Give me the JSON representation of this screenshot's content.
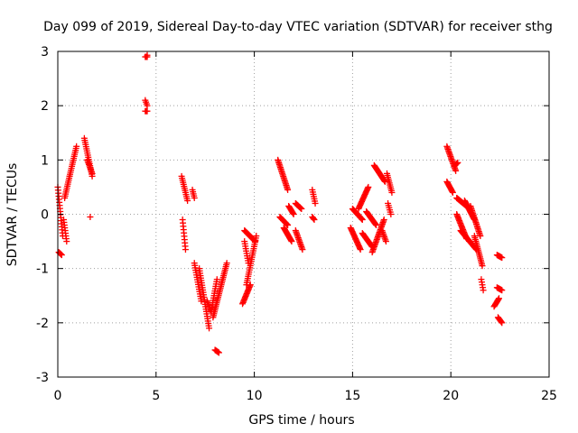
{
  "chart_data": {
    "type": "scatter",
    "title": "Day 099 of 2019, Sidereal Day-to-day VTEC variation (SDTVAR) for receiver sthg",
    "xlabel": "GPS time / hours",
    "ylabel": "SDTVAR / TECUs",
    "xlim": [
      0,
      25
    ],
    "ylim": [
      -3,
      3
    ],
    "xticks": [
      "0",
      "5",
      "10",
      "15",
      "20",
      "25"
    ],
    "yticks": [
      "-3",
      "-2",
      "-1",
      "0",
      "1",
      "2",
      "3"
    ],
    "grid": true,
    "marker": "+",
    "color": "#ff0000",
    "segments": [
      {
        "x0": 0.0,
        "x1": 0.25,
        "y0": 0.5,
        "y1": -0.4
      },
      {
        "x0": 0.05,
        "x1": 0.2,
        "y0": -0.7,
        "y1": -0.75
      },
      {
        "x0": 0.3,
        "x1": 0.45,
        "y0": -0.1,
        "y1": -0.5
      },
      {
        "x0": 0.35,
        "x1": 0.6,
        "y0": 0.3,
        "y1": 0.7
      },
      {
        "x0": 0.6,
        "x1": 0.95,
        "y0": 0.7,
        "y1": 1.25
      },
      {
        "x0": 1.35,
        "x1": 1.75,
        "y0": 1.4,
        "y1": 0.7
      },
      {
        "x0": 1.5,
        "x1": 1.75,
        "y0": 1.0,
        "y1": 0.75
      },
      {
        "x0": 4.45,
        "x1": 4.55,
        "y0": 2.9,
        "y1": 2.9
      },
      {
        "x0": 4.45,
        "x1": 4.55,
        "y0": 2.1,
        "y1": 2.0
      },
      {
        "x0": 4.45,
        "x1": 4.55,
        "y0": 1.9,
        "y1": 1.9
      },
      {
        "x0": 6.3,
        "x1": 6.6,
        "y0": 0.7,
        "y1": 0.25
      },
      {
        "x0": 6.35,
        "x1": 6.5,
        "y0": -0.1,
        "y1": -0.65
      },
      {
        "x0": 6.85,
        "x1": 6.95,
        "y0": 0.45,
        "y1": 0.3
      },
      {
        "x0": 6.95,
        "x1": 7.3,
        "y0": -0.9,
        "y1": -1.6
      },
      {
        "x0": 7.2,
        "x1": 7.7,
        "y0": -1.0,
        "y1": -2.1
      },
      {
        "x0": 7.6,
        "x1": 7.8,
        "y0": -1.6,
        "y1": -1.8
      },
      {
        "x0": 7.8,
        "x1": 8.1,
        "y0": -1.8,
        "y1": -1.2
      },
      {
        "x0": 7.9,
        "x1": 8.6,
        "y0": -1.9,
        "y1": -0.9
      },
      {
        "x0": 8.0,
        "x1": 8.2,
        "y0": -2.5,
        "y1": -2.55
      },
      {
        "x0": 9.4,
        "x1": 9.8,
        "y0": -1.65,
        "y1": -1.3
      },
      {
        "x0": 9.6,
        "x1": 10.1,
        "y0": -1.3,
        "y1": -0.4
      },
      {
        "x0": 9.5,
        "x1": 9.7,
        "y0": -0.5,
        "y1": -0.9
      },
      {
        "x0": 9.5,
        "x1": 10.05,
        "y0": -0.3,
        "y1": -0.5
      },
      {
        "x0": 11.2,
        "x1": 11.7,
        "y0": 1.0,
        "y1": 0.45
      },
      {
        "x0": 11.3,
        "x1": 11.7,
        "y0": -0.05,
        "y1": -0.2
      },
      {
        "x0": 11.5,
        "x1": 11.9,
        "y0": -0.25,
        "y1": -0.5
      },
      {
        "x0": 11.75,
        "x1": 12.0,
        "y0": 0.15,
        "y1": 0.0
      },
      {
        "x0": 12.1,
        "x1": 12.45,
        "y0": -0.3,
        "y1": -0.65
      },
      {
        "x0": 12.1,
        "x1": 12.4,
        "y0": 0.2,
        "y1": 0.1
      },
      {
        "x0": 12.95,
        "x1": 13.1,
        "y0": 0.45,
        "y1": 0.2
      },
      {
        "x0": 12.95,
        "x1": 13.05,
        "y0": -0.05,
        "y1": -0.1
      },
      {
        "x0": 14.9,
        "x1": 15.4,
        "y0": -0.25,
        "y1": -0.65
      },
      {
        "x0": 15.0,
        "x1": 15.5,
        "y0": 0.1,
        "y1": -0.1
      },
      {
        "x0": 15.3,
        "x1": 15.8,
        "y0": 0.1,
        "y1": 0.5
      },
      {
        "x0": 15.5,
        "x1": 16.0,
        "y0": -0.35,
        "y1": -0.6
      },
      {
        "x0": 15.7,
        "x1": 16.2,
        "y0": 0.05,
        "y1": -0.2
      },
      {
        "x0": 16.0,
        "x1": 16.6,
        "y0": -0.7,
        "y1": -0.1
      },
      {
        "x0": 16.1,
        "x1": 16.65,
        "y0": 0.9,
        "y1": 0.6
      },
      {
        "x0": 16.5,
        "x1": 16.7,
        "y0": -0.3,
        "y1": -0.5
      },
      {
        "x0": 16.75,
        "x1": 17.0,
        "y0": 0.75,
        "y1": 0.4
      },
      {
        "x0": 16.8,
        "x1": 16.95,
        "y0": 0.2,
        "y1": 0.0
      },
      {
        "x0": 19.8,
        "x1": 20.25,
        "y0": 1.25,
        "y1": 0.8
      },
      {
        "x0": 19.8,
        "x1": 20.1,
        "y0": 0.6,
        "y1": 0.4
      },
      {
        "x0": 20.2,
        "x1": 20.35,
        "y0": 0.9,
        "y1": 0.95
      },
      {
        "x0": 20.3,
        "x1": 20.8,
        "y0": 0.3,
        "y1": 0.15
      },
      {
        "x0": 20.3,
        "x1": 20.8,
        "y0": 0.0,
        "y1": -0.45
      },
      {
        "x0": 20.5,
        "x1": 21.3,
        "y0": -0.3,
        "y1": -0.65
      },
      {
        "x0": 20.7,
        "x1": 21.2,
        "y0": 0.25,
        "y1": -0.1
      },
      {
        "x0": 21.0,
        "x1": 21.5,
        "y0": 0.15,
        "y1": -0.4
      },
      {
        "x0": 21.2,
        "x1": 21.6,
        "y0": -0.4,
        "y1": -0.95
      },
      {
        "x0": 21.55,
        "x1": 21.65,
        "y0": -1.2,
        "y1": -1.4
      },
      {
        "x0": 22.2,
        "x1": 22.45,
        "y0": -1.7,
        "y1": -1.55
      },
      {
        "x0": 22.35,
        "x1": 22.6,
        "y0": -1.35,
        "y1": -1.4
      },
      {
        "x0": 22.4,
        "x1": 22.6,
        "y0": -1.9,
        "y1": -2.0
      },
      {
        "x0": 22.35,
        "x1": 22.6,
        "y0": -0.75,
        "y1": -0.8
      }
    ],
    "single_points": [
      {
        "x": 1.65,
        "y": -0.05
      },
      {
        "x": 4.55,
        "y": 2.93
      }
    ]
  }
}
